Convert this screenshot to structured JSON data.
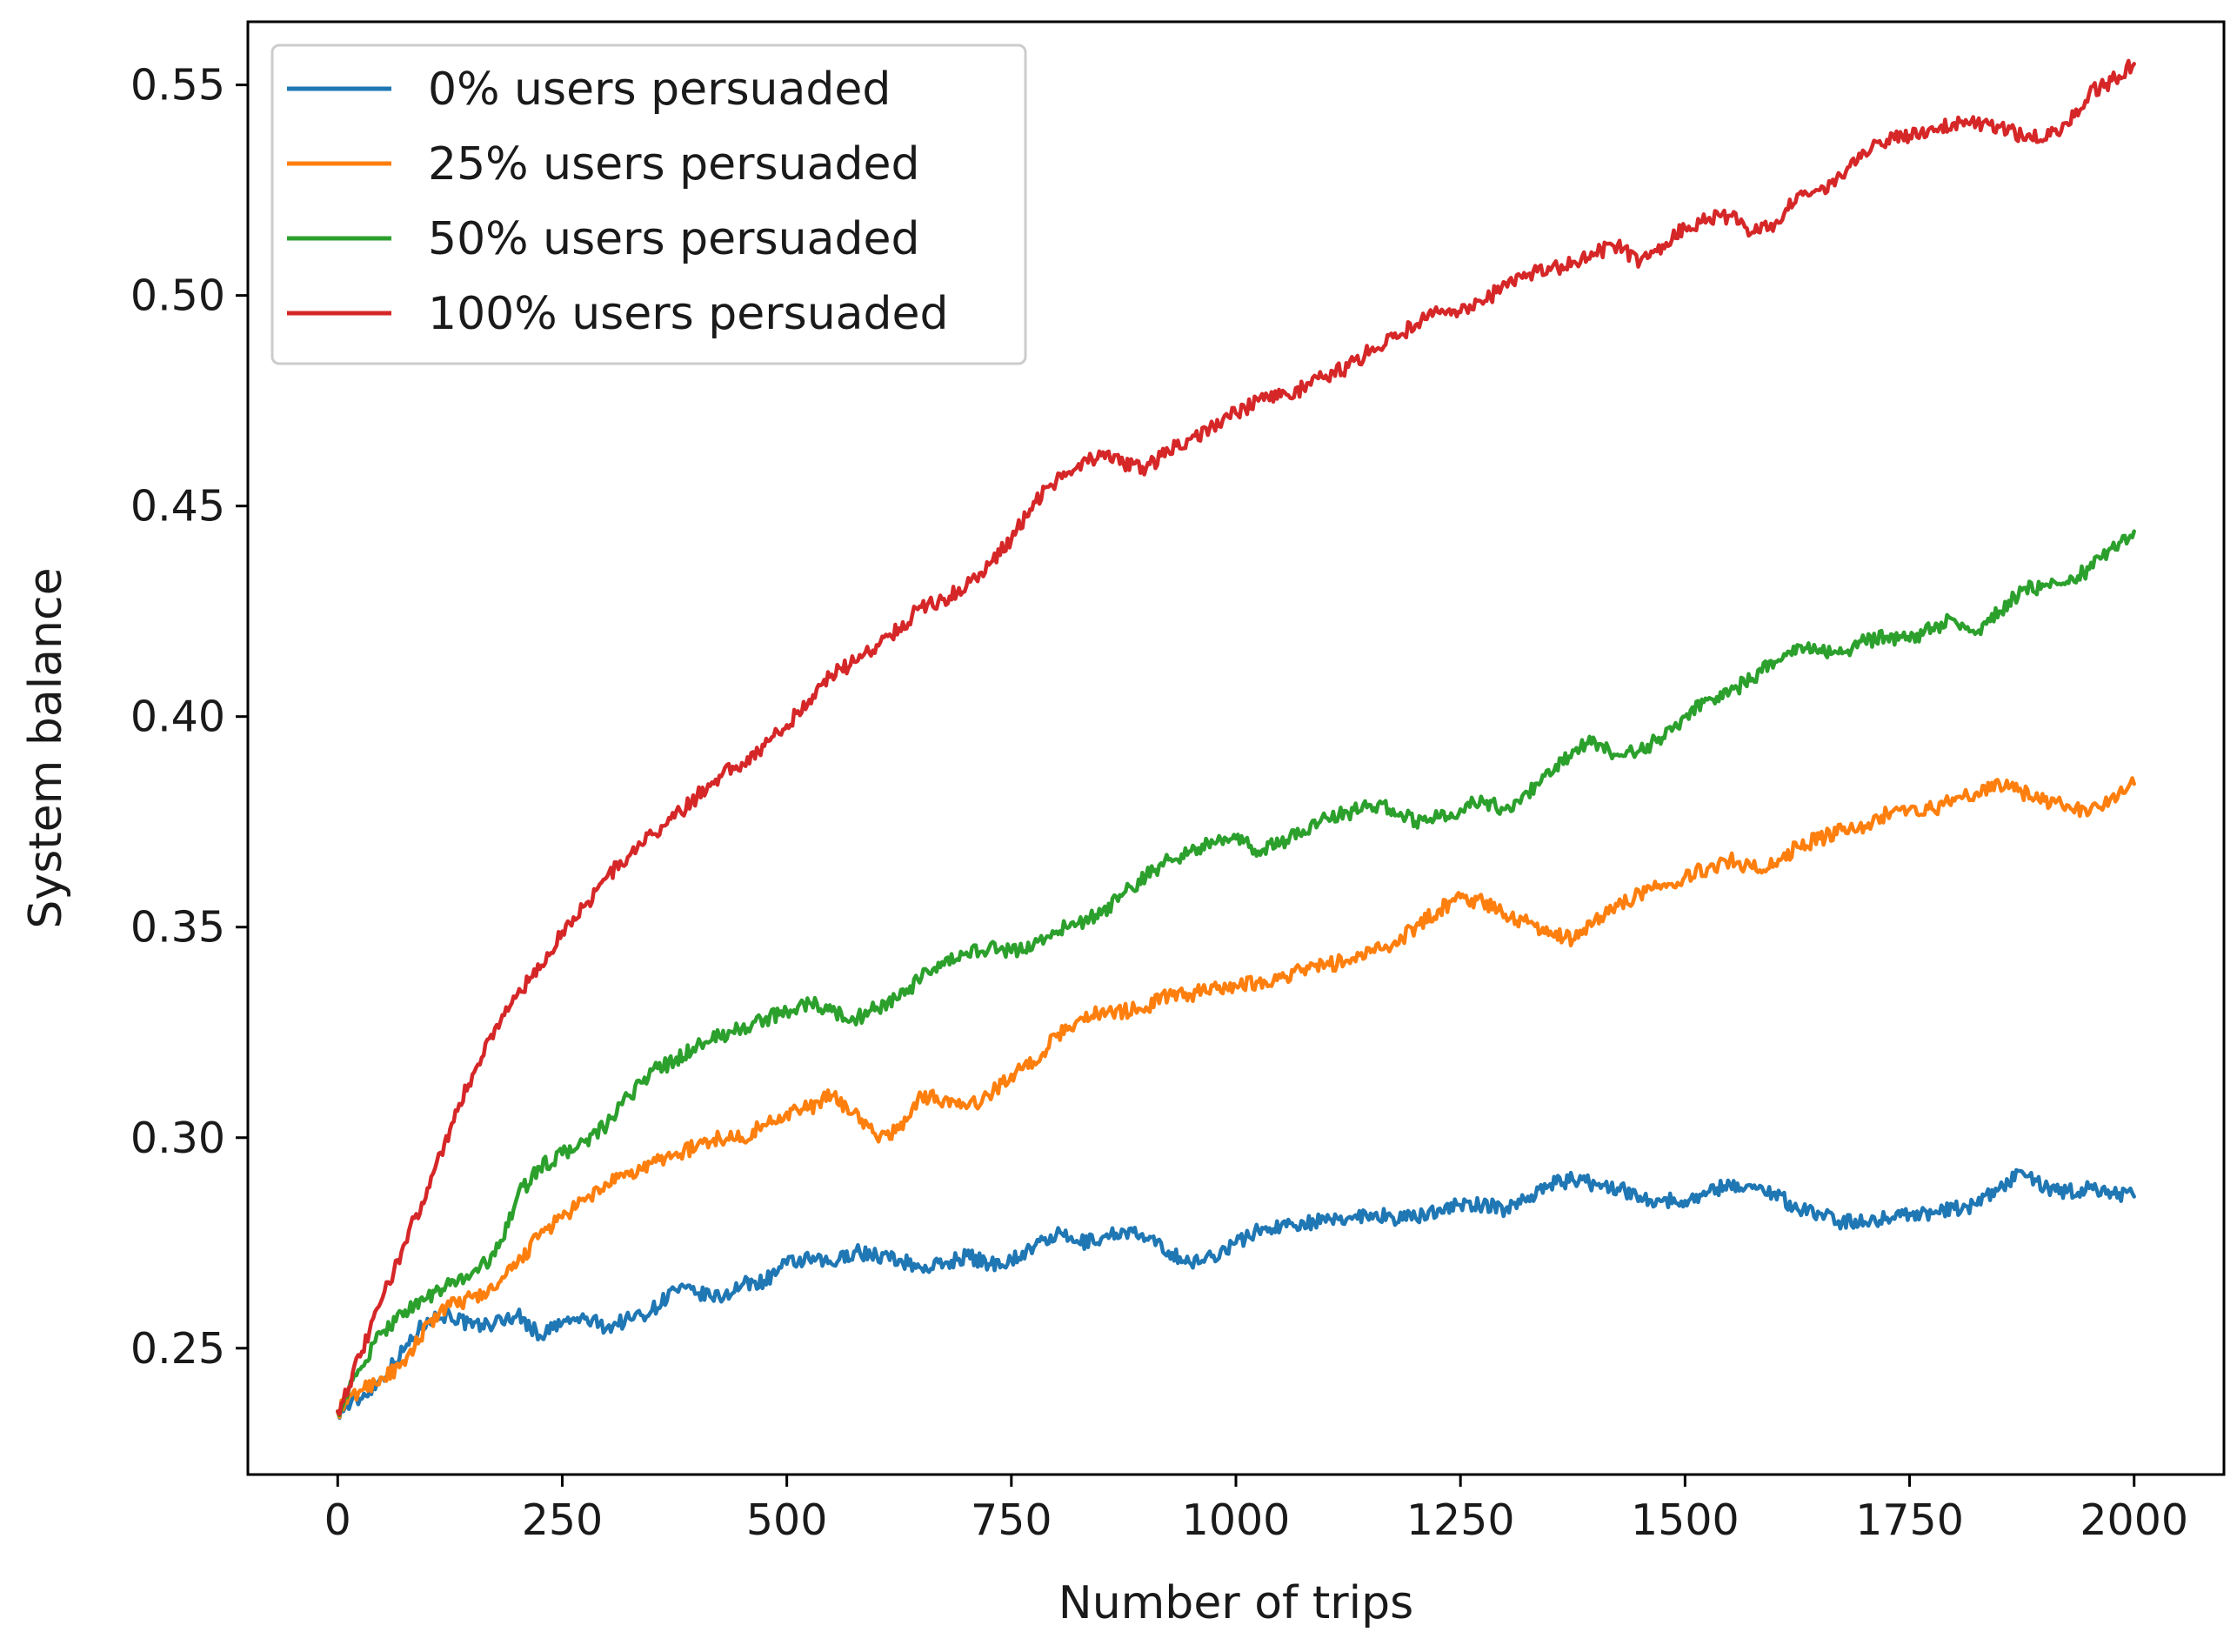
{
  "chart_data": {
    "type": "line",
    "title": "",
    "xlabel": "Number of trips",
    "ylabel": "System balance",
    "xlim": [
      -100,
      2100
    ],
    "ylim": [
      0.22,
      0.565
    ],
    "xticks": [
      0,
      250,
      500,
      750,
      1000,
      1250,
      1500,
      1750,
      2000
    ],
    "yticks": [
      0.25,
      0.3,
      0.35,
      0.4,
      0.45,
      0.5,
      0.55
    ],
    "grid": false,
    "legend_position": "top-left",
    "series": [
      {
        "name": "0% users persuaded",
        "color": "#1f77b4",
        "x": [
          0,
          25,
          50,
          75,
          100,
          125,
          150,
          175,
          200,
          225,
          250,
          275,
          300,
          325,
          350,
          375,
          400,
          425,
          450,
          475,
          500,
          525,
          550,
          575,
          600,
          625,
          650,
          675,
          700,
          725,
          750,
          775,
          800,
          825,
          850,
          875,
          900,
          925,
          950,
          975,
          1000,
          1025,
          1050,
          1075,
          1100,
          1125,
          1150,
          1175,
          1200,
          1225,
          1250,
          1275,
          1300,
          1325,
          1350,
          1375,
          1400,
          1425,
          1450,
          1475,
          1500,
          1525,
          1550,
          1575,
          1600,
          1625,
          1650,
          1675,
          1700,
          1725,
          1750,
          1775,
          1800,
          1825,
          1850,
          1875,
          1900,
          1925,
          1950,
          1975,
          2000
        ],
        "y": [
          0.235,
          0.238,
          0.243,
          0.25,
          0.257,
          0.258,
          0.255,
          0.256,
          0.258,
          0.253,
          0.256,
          0.257,
          0.255,
          0.257,
          0.259,
          0.264,
          0.263,
          0.262,
          0.265,
          0.266,
          0.27,
          0.271,
          0.27,
          0.273,
          0.272,
          0.271,
          0.269,
          0.27,
          0.272,
          0.27,
          0.271,
          0.274,
          0.277,
          0.275,
          0.276,
          0.278,
          0.276,
          0.273,
          0.27,
          0.272,
          0.275,
          0.278,
          0.279,
          0.28,
          0.28,
          0.281,
          0.282,
          0.281,
          0.281,
          0.283,
          0.284,
          0.284,
          0.283,
          0.286,
          0.289,
          0.29,
          0.289,
          0.288,
          0.286,
          0.285,
          0.285,
          0.287,
          0.289,
          0.288,
          0.287,
          0.283,
          0.282,
          0.28,
          0.28,
          0.281,
          0.282,
          0.282,
          0.283,
          0.284,
          0.288,
          0.292,
          0.288,
          0.287,
          0.288,
          0.287,
          0.286
        ]
      },
      {
        "name": "25% users persuaded",
        "color": "#ff7f0e",
        "x": [
          0,
          25,
          50,
          75,
          100,
          125,
          150,
          175,
          200,
          225,
          250,
          275,
          300,
          325,
          350,
          375,
          400,
          425,
          450,
          475,
          500,
          525,
          550,
          575,
          600,
          625,
          650,
          675,
          700,
          725,
          750,
          775,
          800,
          825,
          850,
          875,
          900,
          925,
          950,
          975,
          1000,
          1025,
          1050,
          1075,
          1100,
          1125,
          1150,
          1175,
          1200,
          1225,
          1250,
          1275,
          1300,
          1325,
          1350,
          1375,
          1400,
          1425,
          1450,
          1475,
          1500,
          1525,
          1550,
          1575,
          1600,
          1625,
          1650,
          1675,
          1700,
          1725,
          1750,
          1775,
          1800,
          1825,
          1850,
          1875,
          1900,
          1925,
          1950,
          1975,
          2000
        ],
        "y": [
          0.235,
          0.24,
          0.243,
          0.246,
          0.256,
          0.26,
          0.262,
          0.264,
          0.27,
          0.277,
          0.281,
          0.285,
          0.289,
          0.291,
          0.294,
          0.296,
          0.298,
          0.3,
          0.3,
          0.303,
          0.306,
          0.307,
          0.31,
          0.306,
          0.3,
          0.302,
          0.31,
          0.309,
          0.307,
          0.31,
          0.315,
          0.318,
          0.324,
          0.328,
          0.33,
          0.33,
          0.331,
          0.334,
          0.334,
          0.336,
          0.336,
          0.337,
          0.338,
          0.34,
          0.341,
          0.342,
          0.344,
          0.346,
          0.35,
          0.354,
          0.357,
          0.356,
          0.353,
          0.351,
          0.349,
          0.347,
          0.352,
          0.355,
          0.358,
          0.36,
          0.362,
          0.364,
          0.366,
          0.364,
          0.365,
          0.369,
          0.371,
          0.373,
          0.374,
          0.377,
          0.378,
          0.378,
          0.38,
          0.382,
          0.384,
          0.382,
          0.38,
          0.379,
          0.377,
          0.381,
          0.384
        ]
      },
      {
        "name": "50% users persuaded",
        "color": "#2ca02c",
        "x": [
          0,
          25,
          50,
          75,
          100,
          125,
          150,
          175,
          200,
          225,
          250,
          275,
          300,
          325,
          350,
          375,
          400,
          425,
          450,
          475,
          500,
          525,
          550,
          575,
          600,
          625,
          650,
          675,
          700,
          725,
          750,
          775,
          800,
          825,
          850,
          875,
          900,
          925,
          950,
          975,
          1000,
          1025,
          1050,
          1075,
          1100,
          1125,
          1150,
          1175,
          1200,
          1225,
          1250,
          1275,
          1300,
          1325,
          1350,
          1375,
          1400,
          1425,
          1450,
          1475,
          1500,
          1525,
          1550,
          1575,
          1600,
          1625,
          1650,
          1675,
          1700,
          1725,
          1750,
          1775,
          1800,
          1825,
          1850,
          1875,
          1900,
          1925,
          1950,
          1975,
          2000
        ],
        "y": [
          0.235,
          0.245,
          0.254,
          0.259,
          0.262,
          0.265,
          0.268,
          0.272,
          0.286,
          0.293,
          0.296,
          0.299,
          0.303,
          0.31,
          0.316,
          0.318,
          0.322,
          0.324,
          0.326,
          0.328,
          0.33,
          0.332,
          0.33,
          0.328,
          0.331,
          0.333,
          0.338,
          0.341,
          0.344,
          0.345,
          0.344,
          0.346,
          0.349,
          0.351,
          0.353,
          0.358,
          0.362,
          0.366,
          0.368,
          0.37,
          0.371,
          0.368,
          0.37,
          0.373,
          0.376,
          0.377,
          0.379,
          0.378,
          0.375,
          0.376,
          0.378,
          0.38,
          0.378,
          0.382,
          0.386,
          0.392,
          0.394,
          0.391,
          0.392,
          0.395,
          0.4,
          0.404,
          0.406,
          0.409,
          0.413,
          0.417,
          0.416,
          0.415,
          0.418,
          0.419,
          0.418,
          0.421,
          0.423,
          0.42,
          0.425,
          0.43,
          0.431,
          0.432,
          0.435,
          0.44,
          0.444
        ]
      },
      {
        "name": "100% users persuaded",
        "color": "#d62728",
        "x": [
          0,
          25,
          50,
          75,
          100,
          125,
          150,
          175,
          200,
          225,
          250,
          275,
          300,
          325,
          350,
          375,
          400,
          425,
          450,
          475,
          500,
          525,
          550,
          575,
          600,
          625,
          650,
          675,
          700,
          725,
          750,
          775,
          800,
          825,
          850,
          875,
          900,
          925,
          950,
          975,
          1000,
          1025,
          1050,
          1075,
          1100,
          1125,
          1150,
          1175,
          1200,
          1225,
          1250,
          1275,
          1300,
          1325,
          1350,
          1375,
          1400,
          1425,
          1450,
          1475,
          1500,
          1525,
          1550,
          1575,
          1600,
          1625,
          1650,
          1675,
          1700,
          1725,
          1750,
          1775,
          1800,
          1825,
          1850,
          1875,
          1900,
          1925,
          1950,
          1975,
          2000
        ],
        "y": [
          0.235,
          0.248,
          0.262,
          0.275,
          0.288,
          0.302,
          0.315,
          0.326,
          0.334,
          0.34,
          0.349,
          0.355,
          0.362,
          0.367,
          0.372,
          0.376,
          0.381,
          0.386,
          0.389,
          0.393,
          0.398,
          0.404,
          0.41,
          0.413,
          0.417,
          0.421,
          0.426,
          0.428,
          0.431,
          0.436,
          0.442,
          0.451,
          0.456,
          0.46,
          0.462,
          0.46,
          0.459,
          0.463,
          0.466,
          0.469,
          0.472,
          0.475,
          0.476,
          0.478,
          0.481,
          0.483,
          0.487,
          0.49,
          0.493,
          0.496,
          0.496,
          0.498,
          0.503,
          0.505,
          0.506,
          0.508,
          0.51,
          0.512,
          0.508,
          0.512,
          0.516,
          0.518,
          0.519,
          0.515,
          0.517,
          0.524,
          0.525,
          0.528,
          0.534,
          0.537,
          0.538,
          0.54,
          0.541,
          0.541,
          0.54,
          0.538,
          0.537,
          0.541,
          0.548,
          0.551,
          0.555
        ]
      }
    ]
  }
}
